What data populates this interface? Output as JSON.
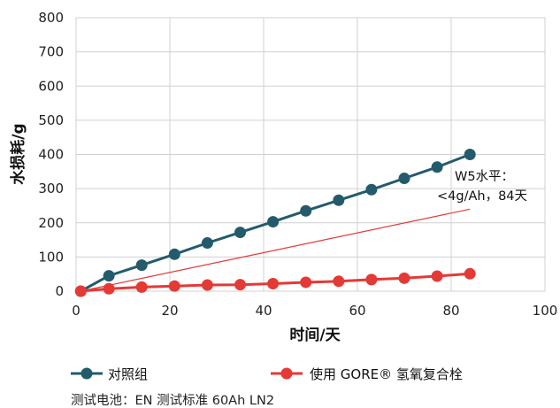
{
  "chart_data": {
    "type": "line",
    "xlabel": "时间/天",
    "ylabel": "水损耗/g",
    "xlim": [
      0,
      100
    ],
    "ylim": [
      0,
      800
    ],
    "x_ticks": [
      "0",
      "20",
      "40",
      "60",
      "80",
      "100"
    ],
    "y_ticks": [
      "0",
      "100",
      "200",
      "300",
      "400",
      "500",
      "600",
      "700",
      "800"
    ],
    "grid": true,
    "legend_position": "bottom",
    "series": [
      {
        "name": "对照组",
        "color": "#245b6c",
        "points": [
          [
            1,
            0
          ],
          [
            7,
            45
          ],
          [
            14,
            76
          ],
          [
            21,
            108
          ],
          [
            28,
            141
          ],
          [
            35,
            172
          ],
          [
            42,
            203
          ],
          [
            49,
            235
          ],
          [
            56,
            266
          ],
          [
            63,
            297
          ],
          [
            70,
            330
          ],
          [
            77,
            363
          ],
          [
            84,
            400
          ]
        ]
      },
      {
        "name": "使用 GORE® 氢氧复合栓",
        "color": "#e53935",
        "points": [
          [
            1,
            0
          ],
          [
            7,
            7
          ],
          [
            14,
            12
          ],
          [
            21,
            15
          ],
          [
            28,
            18
          ],
          [
            35,
            19
          ],
          [
            42,
            22
          ],
          [
            49,
            26
          ],
          [
            56,
            29
          ],
          [
            63,
            34
          ],
          [
            70,
            38
          ],
          [
            77,
            44
          ],
          [
            84,
            51
          ]
        ]
      }
    ],
    "reference_line": {
      "from": [
        1,
        0
      ],
      "to": [
        84,
        240
      ],
      "color": "#e53935"
    },
    "annotation": [
      "W5水平：",
      "<4g/Ah，84天"
    ],
    "footnote": "测试电池：EN 测试标准 60Ah LN2"
  }
}
